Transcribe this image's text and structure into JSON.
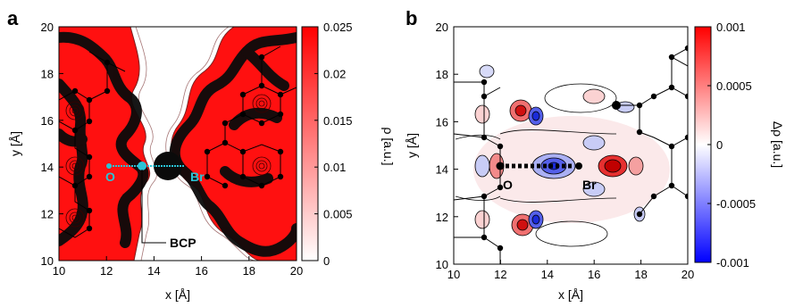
{
  "panels": {
    "a": {
      "letter": "a",
      "xlabel": "x [Å]",
      "ylabel": "y [Å]",
      "cbar_label": "ρ [a.u.]",
      "annotations": {
        "O": "O",
        "Br": "Br",
        "BCP": "BCP"
      }
    },
    "b": {
      "letter": "b",
      "xlabel": "x [Å]",
      "ylabel": "y [Å]",
      "cbar_label": "Δρ [a.u.]",
      "annotations": {
        "O": "O",
        "Br": "Br"
      }
    }
  },
  "chart_data": [
    {
      "type": "heatmap",
      "panel": "a",
      "xlabel": "x [Å]",
      "ylabel": "y [Å]",
      "xlim": [
        10,
        20
      ],
      "ylim": [
        10,
        20
      ],
      "xticks": [
        "10",
        "12",
        "14",
        "16",
        "18",
        "20"
      ],
      "yticks": [
        "10",
        "12",
        "14",
        "16",
        "18",
        "20"
      ],
      "colorbar": {
        "label": "ρ [a.u.]",
        "min": 0,
        "max": 0.025,
        "ticks": [
          "0",
          "0.005",
          "0.01",
          "0.015",
          "0.02",
          "0.025"
        ],
        "colors": [
          "#ffffff",
          "#ff0000"
        ]
      },
      "atoms": [
        {
          "label": "O",
          "x": 12.0,
          "y": 14.0
        },
        {
          "label": "Br",
          "x": 15.2,
          "y": 14.0
        }
      ],
      "bond_critical_point": {
        "label": "BCP",
        "x": 13.4,
        "y": 14.0
      },
      "line_path": {
        "x": [
          12.0,
          15.2
        ],
        "y": [
          14.0,
          14.0
        ],
        "color": "#29c4d6"
      }
    },
    {
      "type": "heatmap",
      "panel": "b",
      "xlabel": "x [Å]",
      "ylabel": "y [Å]",
      "xlim": [
        10,
        20
      ],
      "ylim": [
        10,
        20
      ],
      "xticks": [
        "10",
        "12",
        "14",
        "16",
        "18",
        "20"
      ],
      "yticks": [
        "10",
        "12",
        "14",
        "16",
        "18",
        "20"
      ],
      "colorbar": {
        "label": "Δρ [a.u.]",
        "min": -0.001,
        "max": 0.001,
        "ticks": [
          "-0.001",
          "-0.0005",
          "0",
          "0.0005",
          "0.001"
        ],
        "colors": [
          "#0000ff",
          "#ffffff",
          "#ff0000"
        ]
      },
      "atoms": [
        {
          "label": "O",
          "x": 12.0,
          "y": 14.0
        },
        {
          "label": "Br",
          "x": 15.2,
          "y": 14.0
        }
      ]
    }
  ]
}
